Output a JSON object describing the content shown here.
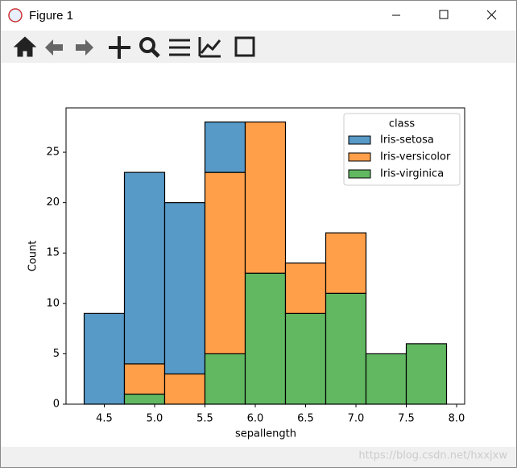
{
  "window_title": "Figure 1",
  "watermark": "https://blog.csdn.net/hxxjxw",
  "chart_data": {
    "type": "stacked_histogram",
    "xlabel": "sepallength",
    "ylabel": "Count",
    "bins": [
      4.3,
      4.7,
      5.1,
      5.5,
      5.9,
      6.3,
      6.7,
      7.1,
      7.5,
      7.9
    ],
    "legend_title": "class",
    "legend_loc": "upper right",
    "series": [
      {
        "name": "Iris-setosa",
        "color": "#5799c7",
        "values": [
          9,
          19,
          17,
          5,
          0,
          0,
          0,
          0,
          0
        ]
      },
      {
        "name": "Iris-versicolor",
        "color": "#ff9f4a",
        "values": [
          0,
          3,
          3,
          18,
          15,
          5,
          6,
          0,
          0
        ]
      },
      {
        "name": "Iris-virginica",
        "color": "#61b861",
        "values": [
          0,
          1,
          0,
          5,
          13,
          9,
          11,
          5,
          6
        ]
      }
    ],
    "xlim": [
      4.12,
      8.08
    ],
    "ylim": [
      0,
      29.4
    ],
    "xticks": [
      4.5,
      {
        "value": 5,
        "label": "5.0"
      },
      5.5,
      {
        "value": 6,
        "label": "6.0"
      },
      6.5,
      {
        "value": 7,
        "label": "7.0"
      },
      7.5,
      {
        "value": 8,
        "label": "8.0"
      }
    ],
    "yticks": [
      0,
      5,
      10,
      15,
      20,
      25
    ]
  }
}
